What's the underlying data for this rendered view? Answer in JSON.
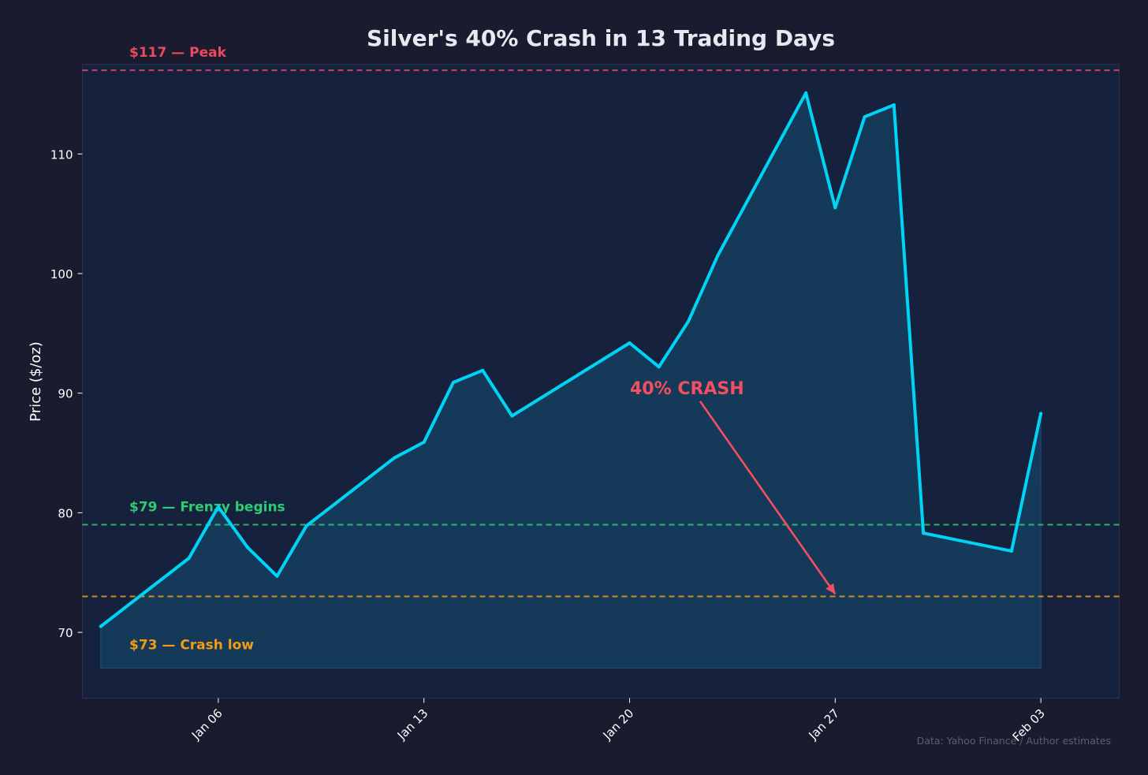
{
  "chart_data": {
    "type": "area",
    "title": "Silver's 40% Crash in 13 Trading Days",
    "ylabel": "Price ($/oz)",
    "xlabel": "",
    "ylim": [
      64.5,
      117.5
    ],
    "yticks": [
      70,
      80,
      90,
      100,
      110
    ],
    "xticks": [
      {
        "date": "2026-01-06",
        "label": "Jan 06"
      },
      {
        "date": "2026-01-13",
        "label": "Jan 13"
      },
      {
        "date": "2026-01-20",
        "label": "Jan 20"
      },
      {
        "date": "2026-01-27",
        "label": "Jan 27"
      },
      {
        "date": "2026-02-03",
        "label": "Feb 03"
      }
    ],
    "xlim": [
      "2026-01-01T09:00",
      "2026-02-05T16:00"
    ],
    "fill_baseline": 67,
    "series": [
      {
        "points": [
          {
            "x": "2026-01-02",
            "y": 70.5
          },
          {
            "x": "2026-01-05",
            "y": 76.2
          },
          {
            "x": "2026-01-06",
            "y": 80.5
          },
          {
            "x": "2026-01-07",
            "y": 77.1
          },
          {
            "x": "2026-01-08",
            "y": 74.7
          },
          {
            "x": "2026-01-09",
            "y": 78.9
          },
          {
            "x": "2026-01-12",
            "y": 84.6
          },
          {
            "x": "2026-01-13",
            "y": 85.9
          },
          {
            "x": "2026-01-14",
            "y": 90.9
          },
          {
            "x": "2026-01-15",
            "y": 91.9
          },
          {
            "x": "2026-01-16",
            "y": 88.1
          },
          {
            "x": "2026-01-20",
            "y": 94.2
          },
          {
            "x": "2026-01-21",
            "y": 92.2
          },
          {
            "x": "2026-01-22",
            "y": 96.0
          },
          {
            "x": "2026-01-23",
            "y": 101.5
          },
          {
            "x": "2026-01-26",
            "y": 115.1
          },
          {
            "x": "2026-01-27",
            "y": 105.5
          },
          {
            "x": "2026-01-28",
            "y": 113.1
          },
          {
            "x": "2026-01-29",
            "y": 114.1
          },
          {
            "x": "2026-01-30",
            "y": 78.3
          },
          {
            "x": "2026-02-02",
            "y": 76.8
          },
          {
            "x": "2026-02-03",
            "y": 88.3
          }
        ]
      }
    ],
    "reference_lines": [
      {
        "y": 117,
        "label": "$117 — Peak",
        "color": "#e84a5f"
      },
      {
        "y": 79,
        "label": "$79 — Frenzy begins",
        "color": "#2ecc71"
      },
      {
        "y": 73,
        "label": "$73 — Crash low",
        "color": "#f39c12"
      }
    ],
    "annotation": {
      "text": "40% CRASH",
      "color": "#f44f5f",
      "text_at": {
        "x": "2026-01-20",
        "y": 90
      },
      "arrow_to": {
        "x": "2026-01-27",
        "y": 73.2
      }
    },
    "source": "Data: Yahoo Finance / Author estimates",
    "grid": false,
    "colors": {
      "background": "#1a1b2e",
      "plot_background": "#16213e",
      "line": "#00d4f5",
      "fill": "#144060",
      "axis_text": "#ffffff",
      "title_text": "#e8e8f0",
      "source_text": "#5a5f73"
    }
  }
}
